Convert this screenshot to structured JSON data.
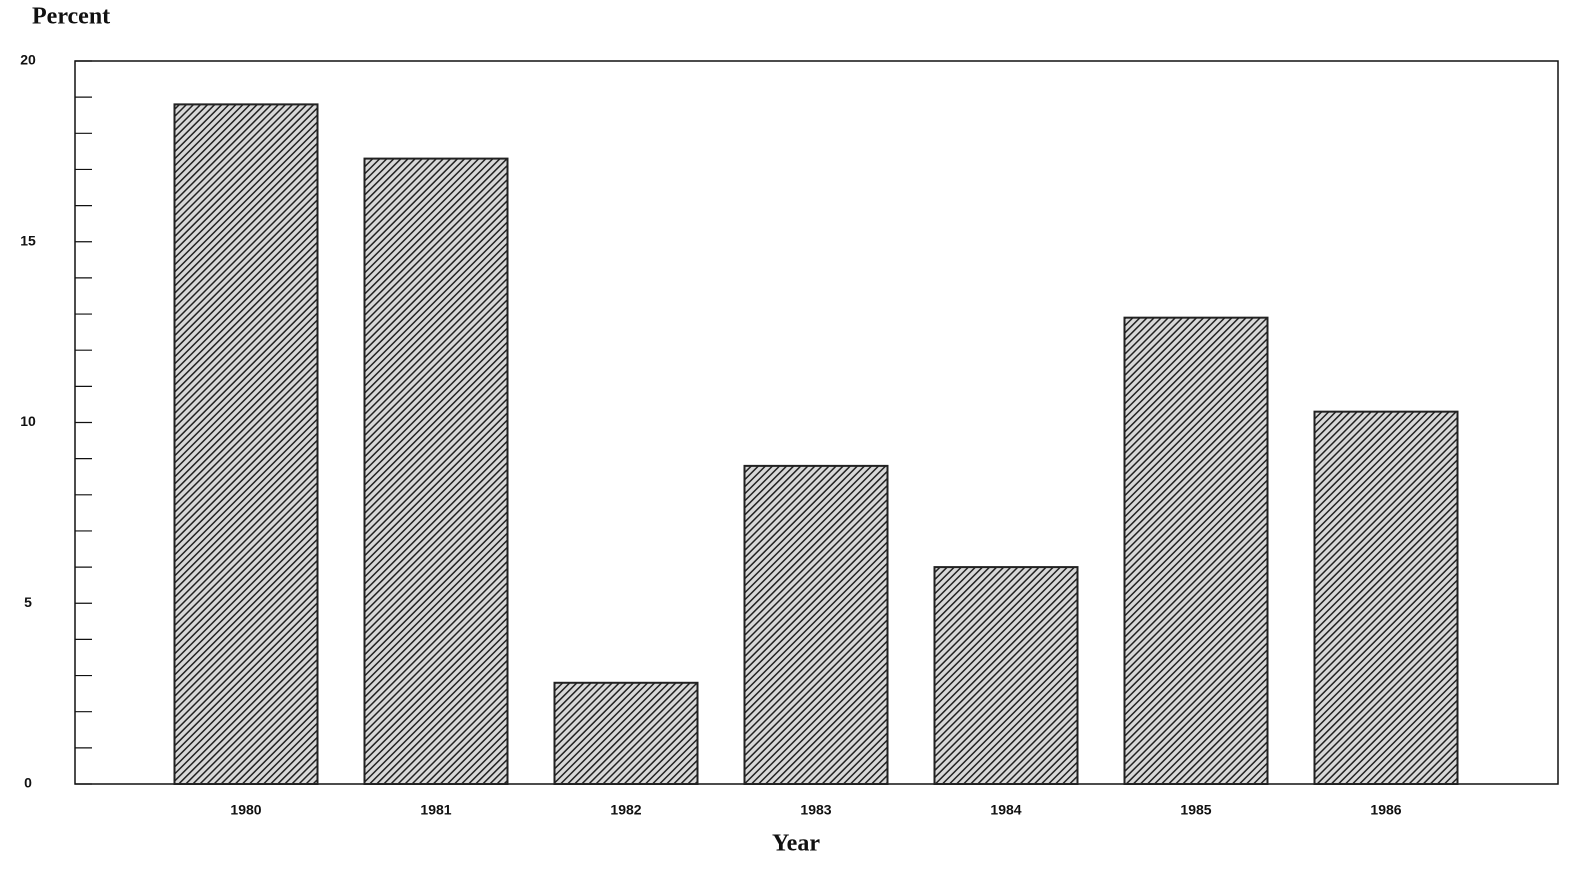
{
  "chart_data": {
    "type": "bar",
    "y_label": "Percent",
    "x_label": "Year",
    "categories": [
      "1980",
      "1981",
      "1982",
      "1983",
      "1984",
      "1985",
      "1986"
    ],
    "values": [
      18.8,
      17.3,
      2.8,
      8.8,
      6.0,
      12.9,
      10.3
    ],
    "color": "#222222",
    "ylim": [
      0,
      20
    ],
    "yticks": [
      0,
      5,
      10,
      15,
      20
    ],
    "yminorticks": [
      1,
      2,
      3,
      4,
      6,
      7,
      8,
      9,
      11,
      12,
      13,
      14,
      16,
      17,
      18,
      19
    ]
  }
}
